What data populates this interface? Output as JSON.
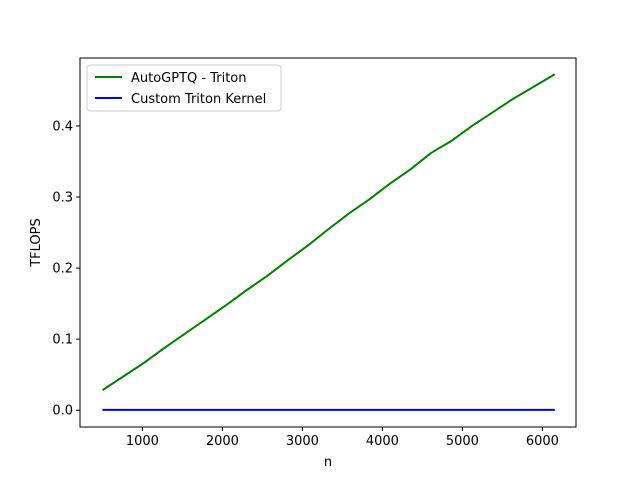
{
  "chart_data": {
    "type": "line",
    "title": "",
    "xlabel": "n",
    "ylabel": "TFLOPS",
    "xlim": [
      220,
      6420
    ],
    "ylim": [
      -0.0236,
      0.4956
    ],
    "xticks": [
      1000,
      2000,
      3000,
      4000,
      5000,
      6000
    ],
    "yticks": [
      0.0,
      0.1,
      0.2,
      0.3,
      0.4
    ],
    "xtick_labels": [
      "1000",
      "2000",
      "3000",
      "4000",
      "5000",
      "6000"
    ],
    "ytick_labels": [
      "0.0",
      "0.1",
      "0.2",
      "0.3",
      "0.4"
    ],
    "grid": false,
    "legend_position": "top-left",
    "series": [
      {
        "name": "AutoGPTQ - Triton",
        "color": "#008000",
        "x": [
          512,
          768,
          1024,
          1280,
          1536,
          1792,
          2048,
          2304,
          2560,
          2816,
          3072,
          3328,
          3584,
          3840,
          4096,
          4352,
          4608,
          4864,
          5120,
          5376,
          5632,
          5888,
          6144
        ],
        "y": [
          0.029,
          0.048,
          0.067,
          0.088,
          0.108,
          0.128,
          0.148,
          0.169,
          0.189,
          0.211,
          0.232,
          0.255,
          0.277,
          0.297,
          0.319,
          0.339,
          0.362,
          0.379,
          0.4,
          0.419,
          0.438,
          0.455,
          0.472
        ]
      },
      {
        "name": "Custom Triton Kernel",
        "color": "#0000ff",
        "x": [
          512,
          768,
          1024,
          1280,
          1536,
          1792,
          2048,
          2304,
          2560,
          2816,
          3072,
          3328,
          3584,
          3840,
          4096,
          4352,
          4608,
          4864,
          5120,
          5376,
          5632,
          5888,
          6144
        ],
        "y": [
          0.0005,
          0.0005,
          0.0005,
          0.0005,
          0.0005,
          0.0005,
          0.0005,
          0.0005,
          0.0005,
          0.0005,
          0.0005,
          0.0005,
          0.0005,
          0.0005,
          0.0005,
          0.0005,
          0.0005,
          0.0005,
          0.0005,
          0.0005,
          0.0005,
          0.0005,
          0.0005
        ]
      }
    ]
  }
}
